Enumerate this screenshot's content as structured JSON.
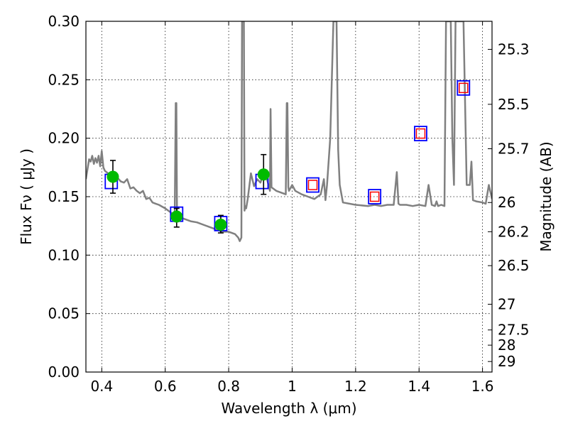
{
  "chart_data": {
    "type": "line",
    "title": "",
    "xlabel": "Wavelength  λ (μm)",
    "ylabel": "Flux  Fν  ( μJy )",
    "y2label": "Magnitude (AB)",
    "xlim": [
      0.35,
      1.63
    ],
    "ylim": [
      0.0,
      0.3
    ],
    "grid": true,
    "x_ticks": [
      0.4,
      0.6,
      0.8,
      1.0,
      1.2,
      1.4,
      1.6
    ],
    "x_tick_labels": [
      "0.4",
      "0.6",
      "0.8",
      "1",
      "1.2",
      "1.4",
      "1.6"
    ],
    "y_ticks": [
      0.0,
      0.05,
      0.1,
      0.15,
      0.2,
      0.25,
      0.3
    ],
    "y_tick_labels": [
      "0.00",
      "0.05",
      "0.10",
      "0.15",
      "0.20",
      "0.25",
      "0.30"
    ],
    "y2_ticks": [
      {
        "label": "25.3",
        "flux": 0.276
      },
      {
        "label": "25.5",
        "flux": 0.229
      },
      {
        "label": "25.7",
        "flux": 0.191
      },
      {
        "label": "26",
        "flux": 0.145
      },
      {
        "label": "26.2",
        "flux": 0.12
      },
      {
        "label": "26.5",
        "flux": 0.091
      },
      {
        "label": "27",
        "flux": 0.058
      },
      {
        "label": "27.5",
        "flux": 0.036
      },
      {
        "label": "28",
        "flux": 0.023
      },
      {
        "label": "29",
        "flux": 0.009
      }
    ],
    "series": [
      {
        "kind": "model_spectrum",
        "color": "#808080",
        "x": [
          0.35,
          0.36,
          0.365,
          0.37,
          0.375,
          0.38,
          0.385,
          0.39,
          0.395,
          0.4,
          0.405,
          0.41,
          0.42,
          0.43,
          0.44,
          0.45,
          0.46,
          0.47,
          0.48,
          0.49,
          0.5,
          0.51,
          0.52,
          0.53,
          0.54,
          0.55,
          0.56,
          0.57,
          0.58,
          0.6,
          0.62,
          0.63,
          0.633,
          0.635,
          0.637,
          0.64,
          0.65,
          0.66,
          0.67,
          0.68,
          0.7,
          0.72,
          0.74,
          0.76,
          0.78,
          0.8,
          0.82,
          0.83,
          0.835,
          0.84,
          0.842,
          0.845,
          0.848,
          0.85,
          0.852,
          0.855,
          0.86,
          0.87,
          0.88,
          0.89,
          0.9,
          0.91,
          0.92,
          0.93,
          0.932,
          0.935,
          0.94,
          0.95,
          0.96,
          0.97,
          0.98,
          0.983,
          0.985,
          0.988,
          0.99,
          1.0,
          1.01,
          1.03,
          1.05,
          1.07,
          1.09,
          1.1,
          1.105,
          1.11,
          1.12,
          1.13,
          1.135,
          1.14,
          1.145,
          1.15,
          1.16,
          1.2,
          1.24,
          1.26,
          1.28,
          1.3,
          1.32,
          1.33,
          1.335,
          1.34,
          1.36,
          1.38,
          1.4,
          1.42,
          1.43,
          1.44,
          1.45,
          1.455,
          1.46,
          1.47,
          1.48,
          1.485,
          1.49,
          1.5,
          1.505,
          1.51,
          1.515,
          1.52,
          1.53,
          1.54,
          1.55,
          1.56,
          1.565,
          1.57,
          1.58,
          1.6,
          1.61,
          1.62,
          1.63
        ],
        "y": [
          0.165,
          0.182,
          0.18,
          0.185,
          0.178,
          0.183,
          0.179,
          0.185,
          0.176,
          0.189,
          0.175,
          0.172,
          0.17,
          0.168,
          0.165,
          0.166,
          0.163,
          0.162,
          0.165,
          0.157,
          0.158,
          0.155,
          0.153,
          0.155,
          0.148,
          0.149,
          0.145,
          0.144,
          0.143,
          0.14,
          0.136,
          0.134,
          0.23,
          0.23,
          0.134,
          0.133,
          0.132,
          0.131,
          0.13,
          0.129,
          0.128,
          0.126,
          0.124,
          0.122,
          0.12,
          0.12,
          0.118,
          0.115,
          0.112,
          0.115,
          0.3,
          0.3,
          0.3,
          0.138,
          0.142,
          0.14,
          0.148,
          0.17,
          0.159,
          0.165,
          0.162,
          0.17,
          0.166,
          0.155,
          0.225,
          0.158,
          0.157,
          0.155,
          0.154,
          0.153,
          0.152,
          0.23,
          0.23,
          0.158,
          0.155,
          0.16,
          0.155,
          0.152,
          0.15,
          0.148,
          0.152,
          0.165,
          0.147,
          0.16,
          0.2,
          0.3,
          0.3,
          0.3,
          0.19,
          0.16,
          0.145,
          0.143,
          0.142,
          0.143,
          0.142,
          0.143,
          0.143,
          0.171,
          0.144,
          0.143,
          0.143,
          0.142,
          0.143,
          0.142,
          0.16,
          0.143,
          0.142,
          0.146,
          0.142,
          0.143,
          0.142,
          0.3,
          0.3,
          0.3,
          0.2,
          0.16,
          0.3,
          0.3,
          0.3,
          0.3,
          0.16,
          0.16,
          0.18,
          0.147,
          0.146,
          0.145,
          0.144,
          0.16,
          0.148
        ]
      },
      {
        "kind": "observed_photometry",
        "color": "#00bb00",
        "x": [
          0.435,
          0.636,
          0.775,
          0.91
        ],
        "y": [
          0.167,
          0.133,
          0.126,
          0.169
        ],
        "yerr_low": [
          0.153,
          0.124,
          0.119,
          0.152
        ],
        "yerr_high": [
          0.181,
          0.14,
          0.134,
          0.186
        ]
      },
      {
        "kind": "model_bandpass_blue",
        "color": "#0000ff",
        "x": [
          0.43,
          0.636,
          0.775,
          0.905,
          1.065,
          1.26,
          1.405,
          1.54
        ],
        "y": [
          0.163,
          0.135,
          0.127,
          0.163,
          0.16,
          0.15,
          0.204,
          0.243
        ]
      },
      {
        "kind": "model_bandpass_red",
        "color": "#ff0000",
        "x": [
          1.065,
          1.26,
          1.405,
          1.54
        ],
        "y": [
          0.16,
          0.15,
          0.204,
          0.243
        ]
      }
    ]
  }
}
